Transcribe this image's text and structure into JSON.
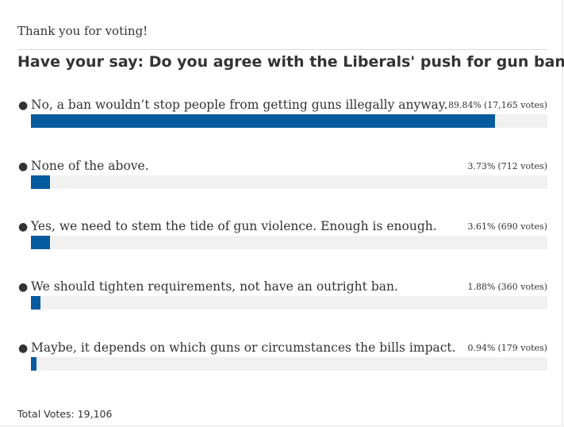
{
  "poll": {
    "thanks": "Thank you for voting!",
    "question": "Have your say: Do you agree with the Liberals' push for gun bans?",
    "answers": [
      {
        "label": "No, a ban wouldn’t stop people from getting guns illegally anyway.",
        "percent": "89.84%",
        "votes": "(17,165 votes)",
        "fraction": 0.8984
      },
      {
        "label": "None of the above.",
        "percent": "3.73%",
        "votes": "(712 votes)",
        "fraction": 0.0373
      },
      {
        "label": "Yes, we need to stem the tide of gun violence. Enough is enough.",
        "percent": "3.61%",
        "votes": "(690 votes)",
        "fraction": 0.0361
      },
      {
        "label": "We should tighten requirements, not have an outright ban.",
        "percent": "1.88%",
        "votes": "(360 votes)",
        "fraction": 0.0188
      },
      {
        "label": "Maybe, it depends on which guns or circumstances the bills impact.",
        "percent": "0.94%",
        "votes": "(179 votes)",
        "fraction": 0.0094
      }
    ],
    "total_votes": "Total Votes: 19,106",
    "bar_color": "#065a9e",
    "track_color": "#f1f1f1"
  }
}
